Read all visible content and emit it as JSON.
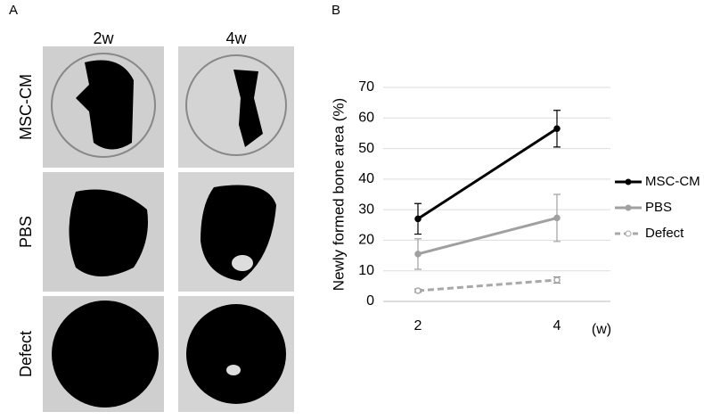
{
  "panel_a": {
    "label": "A",
    "columns": [
      "2w",
      "4w"
    ],
    "rows": [
      "MSC-CM",
      "PBS",
      "Defect"
    ]
  },
  "chart_data": {
    "type": "line",
    "panel_label": "B",
    "ylabel": "Newly formed bone area (%)",
    "xlabel": "(w)",
    "categories": [
      "2",
      "4"
    ],
    "series": [
      {
        "name": "MSC-CM",
        "color": "#000000",
        "dash": false,
        "values": [
          27,
          56.5
        ],
        "errors": [
          5,
          6
        ]
      },
      {
        "name": "PBS",
        "color": "#a0a0a0",
        "dash": false,
        "values": [
          15.5,
          27.3
        ],
        "errors": [
          5,
          7.7
        ]
      },
      {
        "name": "Defect",
        "color": "#a8a8a8",
        "dash": true,
        "values": [
          3.5,
          7
        ],
        "errors": [
          0.5,
          1
        ]
      }
    ],
    "ylim": [
      0,
      70
    ],
    "yticks": [
      0,
      10,
      20,
      30,
      40,
      50,
      60,
      70
    ],
    "grid": true,
    "legend": "right"
  }
}
